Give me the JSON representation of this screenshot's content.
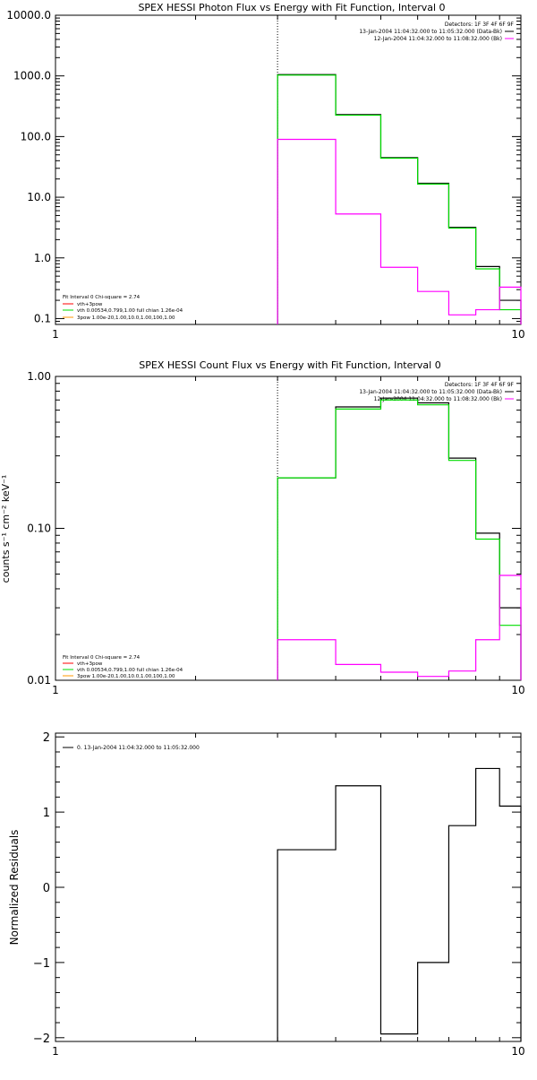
{
  "chart_data": [
    {
      "type": "line",
      "title": "SPEX HESSI Photon Flux vs Energy with Fit Function, Interval 0",
      "xlabel": "",
      "ylabel": "",
      "xscale": "log",
      "yscale": "log",
      "xlim": [
        1,
        10
      ],
      "ylim": [
        0.08,
        10000
      ],
      "x_tick_labels": [
        "1",
        "10"
      ],
      "y_tick_labels": [
        "0.1",
        "1.0",
        "10.0",
        "100.0",
        "1000.0",
        "10000.0"
      ],
      "vline_x": 3,
      "header_lines": [
        "Detectors: 1F 3F 4F 6F 9F",
        "13-Jan-2004 11:04:32.000 to 11:05:32.000 (Data-Bk)",
        "12-Jan-2004 11:04:32.000 to 11:08:32.000 (Bk)"
      ],
      "header_colors": [
        "",
        "#000000",
        "#ff00ff"
      ],
      "fit_lines": [
        "Fit Interval 0   Chi-square = 2.74",
        "vth+3pow",
        "vth 0.00534,0.799,1.00  full chian 1.26e-04",
        "3pow 1.00e-20,1.00,10.0,1.00,100,1.00"
      ],
      "fit_colors": [
        "",
        "#ff0000",
        "#00dd00",
        "#ff9900"
      ],
      "bin_edges": [
        3,
        4,
        5,
        6,
        7,
        8,
        9,
        10
      ],
      "series": [
        {
          "name": "Data-Bk",
          "color": "#000000",
          "values": [
            1050,
            230,
            45,
            17,
            3.2,
            0.72,
            0.2
          ]
        },
        {
          "name": "vth",
          "color": "#00dd00",
          "values": [
            1030,
            225,
            44,
            16.5,
            3.1,
            0.66,
            0.14
          ]
        },
        {
          "name": "Bk",
          "color": "#ff00ff",
          "values": [
            90,
            5.3,
            0.7,
            0.28,
            0.115,
            0.14,
            0.33
          ]
        }
      ]
    },
    {
      "type": "line",
      "title": "SPEX HESSI Count Flux vs Energy with Fit Function, Interval 0",
      "xlabel": "",
      "ylabel": "counts s⁻¹ cm⁻² keV⁻¹",
      "xscale": "log",
      "yscale": "log",
      "xlim": [
        1,
        10
      ],
      "ylim": [
        0.01,
        1.0
      ],
      "x_tick_labels": [
        "1",
        "10"
      ],
      "y_tick_labels": [
        "0.01",
        "0.10",
        "1.00"
      ],
      "vline_x": 3,
      "header_lines": [
        "Detectors: 1F 3F 4F 6F 9F",
        "13-Jan-2004 11:04:32.000 to 11:05:32.000 (Data-Bk)",
        "12-Jan-2004 11:04:32.000 to 11:08:32.000 (Bk)"
      ],
      "header_colors": [
        "",
        "#000000",
        "#ff00ff"
      ],
      "fit_lines": [
        "Fit Interval 0   Chi-square = 2.74",
        "vth+3pow",
        "vth 0.00534,0.799,1.00  full chian 1.26e-04",
        "3pow 1.00e-20,1.00,10.0,1.00,100,1.00"
      ],
      "fit_colors": [
        "",
        "#ff0000",
        "#00dd00",
        "#ff9900"
      ],
      "bin_edges": [
        3,
        4,
        5,
        6,
        7,
        8,
        9,
        10
      ],
      "series": [
        {
          "name": "Data-Bk",
          "color": "#000000",
          "values": [
            0.215,
            0.63,
            0.72,
            0.67,
            0.29,
            0.093,
            0.03
          ]
        },
        {
          "name": "vth",
          "color": "#00dd00",
          "values": [
            0.215,
            0.61,
            0.7,
            0.65,
            0.28,
            0.085,
            0.023
          ]
        },
        {
          "name": "Bk",
          "color": "#ff00ff",
          "values": [
            0.0185,
            0.0127,
            0.0113,
            0.0106,
            0.0115,
            0.0185,
            0.049
          ]
        }
      ]
    },
    {
      "type": "line",
      "title": "",
      "xlabel": "",
      "ylabel": "Normalized Residuals",
      "xscale": "log",
      "yscale": "linear",
      "xlim": [
        1,
        10
      ],
      "ylim": [
        -2.05,
        2.05
      ],
      "x_tick_labels": [
        "1",
        "10"
      ],
      "y_tick_labels": [
        "−2",
        "−1",
        "0",
        "1",
        "2"
      ],
      "legend": "0. 13-Jan-2004 11:04:32.000 to 11:05:32.000",
      "bin_edges": [
        3,
        4,
        5,
        6,
        7,
        8,
        9,
        10
      ],
      "series": [
        {
          "name": "0. 13-Jan-2004 11:04:32.000 to 11:05:32.000",
          "color": "#000000",
          "values": [
            0.5,
            1.35,
            -1.95,
            -1.0,
            0.82,
            1.58,
            1.08
          ]
        }
      ]
    }
  ]
}
